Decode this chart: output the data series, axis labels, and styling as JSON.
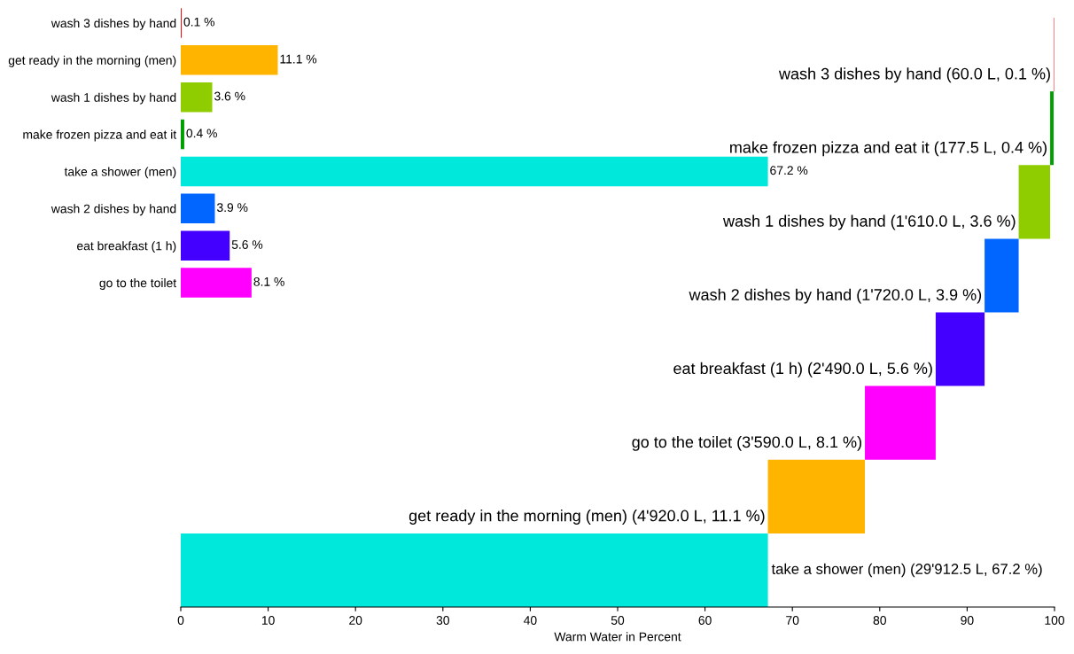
{
  "chart_data": [
    {
      "type": "bar",
      "orientation": "horizontal",
      "categories": [
        "wash 3 dishes by hand",
        "get ready in the morning (men)",
        "wash 1 dishes by hand",
        "make frozen pizza and eat it",
        "take a shower (men)",
        "wash 2 dishes by hand",
        "eat breakfast (1 h)",
        "go to the toilet"
      ],
      "values": [
        0.1,
        11.1,
        3.6,
        0.4,
        67.2,
        3.9,
        5.6,
        8.1
      ],
      "colors": [
        "#ff0000",
        "#ffb400",
        "#8fcc00",
        "#00a000",
        "#00e8dc",
        "#0066ff",
        "#4400ff",
        "#ff00ff"
      ],
      "value_labels": [
        "0.1 %",
        "11.1 %",
        "3.6 %",
        "0.4 %",
        "67.2 %",
        "3.9 %",
        "5.6 %",
        "8.1 %"
      ],
      "xlim": [
        0,
        100
      ],
      "tick_labels": "y",
      "grid": false,
      "legend": false
    },
    {
      "type": "bar",
      "orientation": "horizontal",
      "categories": [
        "wash 3 dishes by hand (60.0 L, 0.1 %)",
        "make frozen pizza and eat it (177.5 L, 0.4 %)",
        "wash 1 dishes by hand (1'610.0 L, 3.6 %)",
        "wash 2 dishes by hand (1'720.0 L, 3.9 %)",
        "eat breakfast (1 h) (2'490.0 L, 5.6 %)",
        "go to the toilet (3'590.0 L, 8.1 %)",
        "get ready in the morning (men) (4'920.0 L, 11.1 %)",
        "take a shower (men) (29'912.5 L, 67.2 %)"
      ],
      "values": [
        0.1,
        0.4,
        3.6,
        3.9,
        5.6,
        8.1,
        11.1,
        67.2
      ],
      "base": [
        99.9,
        99.5,
        95.9,
        92.0,
        86.4,
        78.3,
        67.2,
        0
      ],
      "colors": [
        "#ff8080",
        "#00a000",
        "#8fcc00",
        "#0066ff",
        "#4400ff",
        "#ff00ff",
        "#ffb400",
        "#00e8dc"
      ],
      "xlim": [
        0,
        100
      ],
      "xticks": [
        0,
        10,
        20,
        30,
        40,
        50,
        60,
        70,
        80,
        90,
        100
      ],
      "xlabel": "Warm Water in Percent",
      "tick_labels": "x",
      "grid": false,
      "legend": false
    }
  ]
}
